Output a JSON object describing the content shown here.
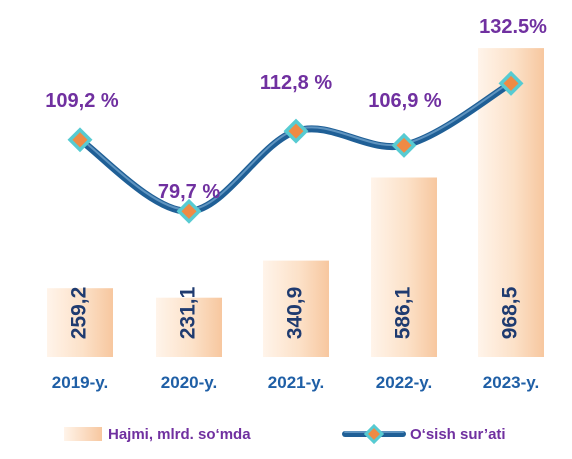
{
  "chart_data": {
    "type": "bar",
    "categories": [
      "2019-y.",
      "2020-y.",
      "2021-y.",
      "2022-y.",
      "2023-y."
    ],
    "series": [
      {
        "name": "Hajmi, mlrd. so‘mda",
        "type": "bar",
        "values": [
          259.2,
          231.1,
          340.9,
          586.1,
          968.5
        ],
        "labels": [
          "259,2",
          "231,1",
          "340,9",
          "586,1",
          "968,5"
        ]
      },
      {
        "name": "O‘sish sur’ati",
        "type": "line",
        "values": [
          109.2,
          79.7,
          112.8,
          106.9,
          132.5
        ],
        "labels": [
          "109,2 %",
          "79,7 %",
          "112,8 %",
          "106,9 %",
          "132.5%"
        ]
      }
    ],
    "legend": {
      "position": "bottom",
      "bar_label": "Hajmi, mlrd. so‘mda",
      "line_label": "O‘sish sur’ati"
    },
    "colors": {
      "bar_light": "#fff4ea",
      "bar_dark": "#f7c79f",
      "line": "#1f5f96",
      "line_highlight": "#5f94c0",
      "marker_fill": "#ef8a44",
      "marker_border": "#57cbd2",
      "percent_text": "#7030a0",
      "value_text": "#1f3b70",
      "category_text": "#1f5fa6",
      "legend_text": "#7030a0"
    },
    "grid": false
  }
}
